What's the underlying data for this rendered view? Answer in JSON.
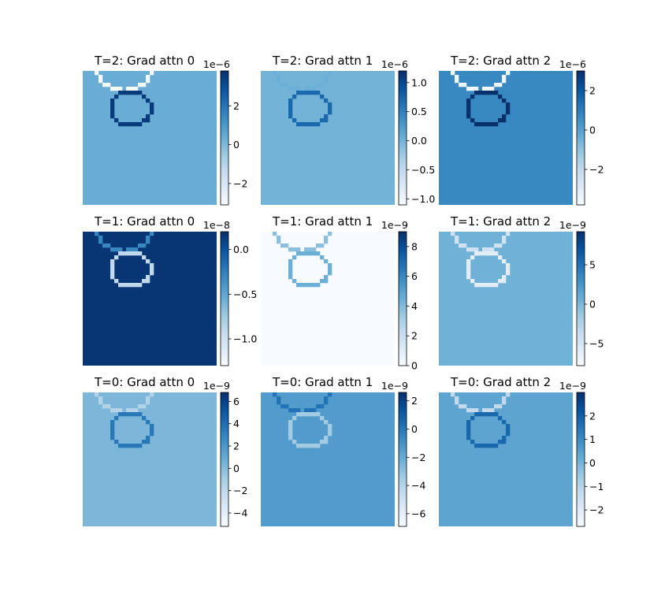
{
  "chart_data": [
    {
      "type": "heatmap",
      "title": "T=2: Grad attn 0",
      "colormap": "Blues",
      "scale_label": "1e−6",
      "background_value": 0.4,
      "contour_outer_value": -3.0,
      "contour_inner_value": 3.5,
      "cbar_range": [
        -3.1,
        3.8
      ],
      "cbar_ticks": [
        -2,
        0,
        2
      ],
      "cbar_tick_labels": [
        "−2",
        "0",
        "2"
      ]
    },
    {
      "type": "heatmap",
      "title": "T=2: Grad attn 1",
      "colormap": "Blues",
      "scale_label": "1e−6",
      "background_value": 0.0,
      "contour_outer_value": 0.05,
      "contour_inner_value": 0.7,
      "cbar_range": [
        -1.1,
        1.2
      ],
      "cbar_ticks": [
        -1.0,
        -0.5,
        0.0,
        0.5,
        1.0
      ],
      "cbar_tick_labels": [
        "−1.0",
        "−0.5",
        "0.0",
        "0.5",
        "1.0"
      ]
    },
    {
      "type": "heatmap",
      "title": "T=2: Grad attn 2",
      "colormap": "Blues",
      "scale_label": "1e−6",
      "background_value": 0.7,
      "contour_outer_value": -3.5,
      "contour_inner_value": 3.0,
      "cbar_range": [
        -3.8,
        3.0
      ],
      "cbar_ticks": [
        -2,
        0,
        2
      ],
      "cbar_tick_labels": [
        "−2",
        "0",
        "2"
      ]
    },
    {
      "type": "heatmap",
      "title": "T=1: Grad attn 0",
      "colormap": "Blues",
      "scale_label": "1e−8",
      "background_value": 0.17,
      "contour_outer_value": -0.3,
      "contour_inner_value": -0.9,
      "cbar_range": [
        -1.3,
        0.2
      ],
      "cbar_ticks": [
        -1.0,
        -0.5,
        0.0
      ],
      "cbar_tick_labels": [
        "−1.0",
        "−0.5",
        "0.0"
      ]
    },
    {
      "type": "heatmap",
      "title": "T=1: Grad attn 1",
      "colormap": "Blues",
      "scale_label": "1e−9",
      "background_value": 0.0,
      "contour_outer_value": 3.8,
      "contour_inner_value": 4.5,
      "cbar_range": [
        0,
        9
      ],
      "cbar_ticks": [
        0,
        2,
        4,
        6,
        8
      ],
      "cbar_tick_labels": [
        "0",
        "2",
        "4",
        "6",
        "8"
      ]
    },
    {
      "type": "heatmap",
      "title": "T=1: Grad attn 2",
      "colormap": "Blues",
      "scale_label": "1e−9",
      "background_value": 0.5,
      "contour_outer_value": -4.5,
      "contour_inner_value": -6.0,
      "cbar_range": [
        -7.8,
        9.2
      ],
      "cbar_ticks": [
        -5,
        0,
        5
      ],
      "cbar_tick_labels": [
        "−5",
        "0",
        "5"
      ]
    },
    {
      "type": "heatmap",
      "title": "T=0: Grad attn 0",
      "colormap": "Blues",
      "scale_label": "1e−9",
      "background_value": 0.3,
      "contour_outer_value": -1.5,
      "contour_inner_value": 3.5,
      "cbar_range": [
        -5.2,
        6.8
      ],
      "cbar_ticks": [
        -4,
        -2,
        0,
        2,
        4,
        6
      ],
      "cbar_tick_labels": [
        "−4",
        "−2",
        "0",
        "2",
        "4",
        "6"
      ]
    },
    {
      "type": "heatmap",
      "title": "T=0: Grad attn 1",
      "colormap": "Blues",
      "scale_label": "1e−9",
      "background_value": -1.4,
      "contour_outer_value": 0.2,
      "contour_inner_value": -3.5,
      "cbar_range": [
        -6.9,
        2.6
      ],
      "cbar_ticks": [
        -6,
        -4,
        -2,
        0,
        2
      ],
      "cbar_tick_labels": [
        "−6",
        "−4",
        "−2",
        "0",
        "2"
      ]
    },
    {
      "type": "heatmap",
      "title": "T=0: Grad attn 2",
      "colormap": "Blues",
      "scale_label": "1e−9",
      "background_value": 0.4,
      "contour_outer_value": -1.2,
      "contour_inner_value": 1.8,
      "cbar_range": [
        -2.7,
        3.0
      ],
      "cbar_ticks": [
        -2,
        -1,
        0,
        1,
        2
      ],
      "cbar_tick_labels": [
        "−2",
        "−1",
        "0",
        "1",
        "2"
      ]
    }
  ]
}
